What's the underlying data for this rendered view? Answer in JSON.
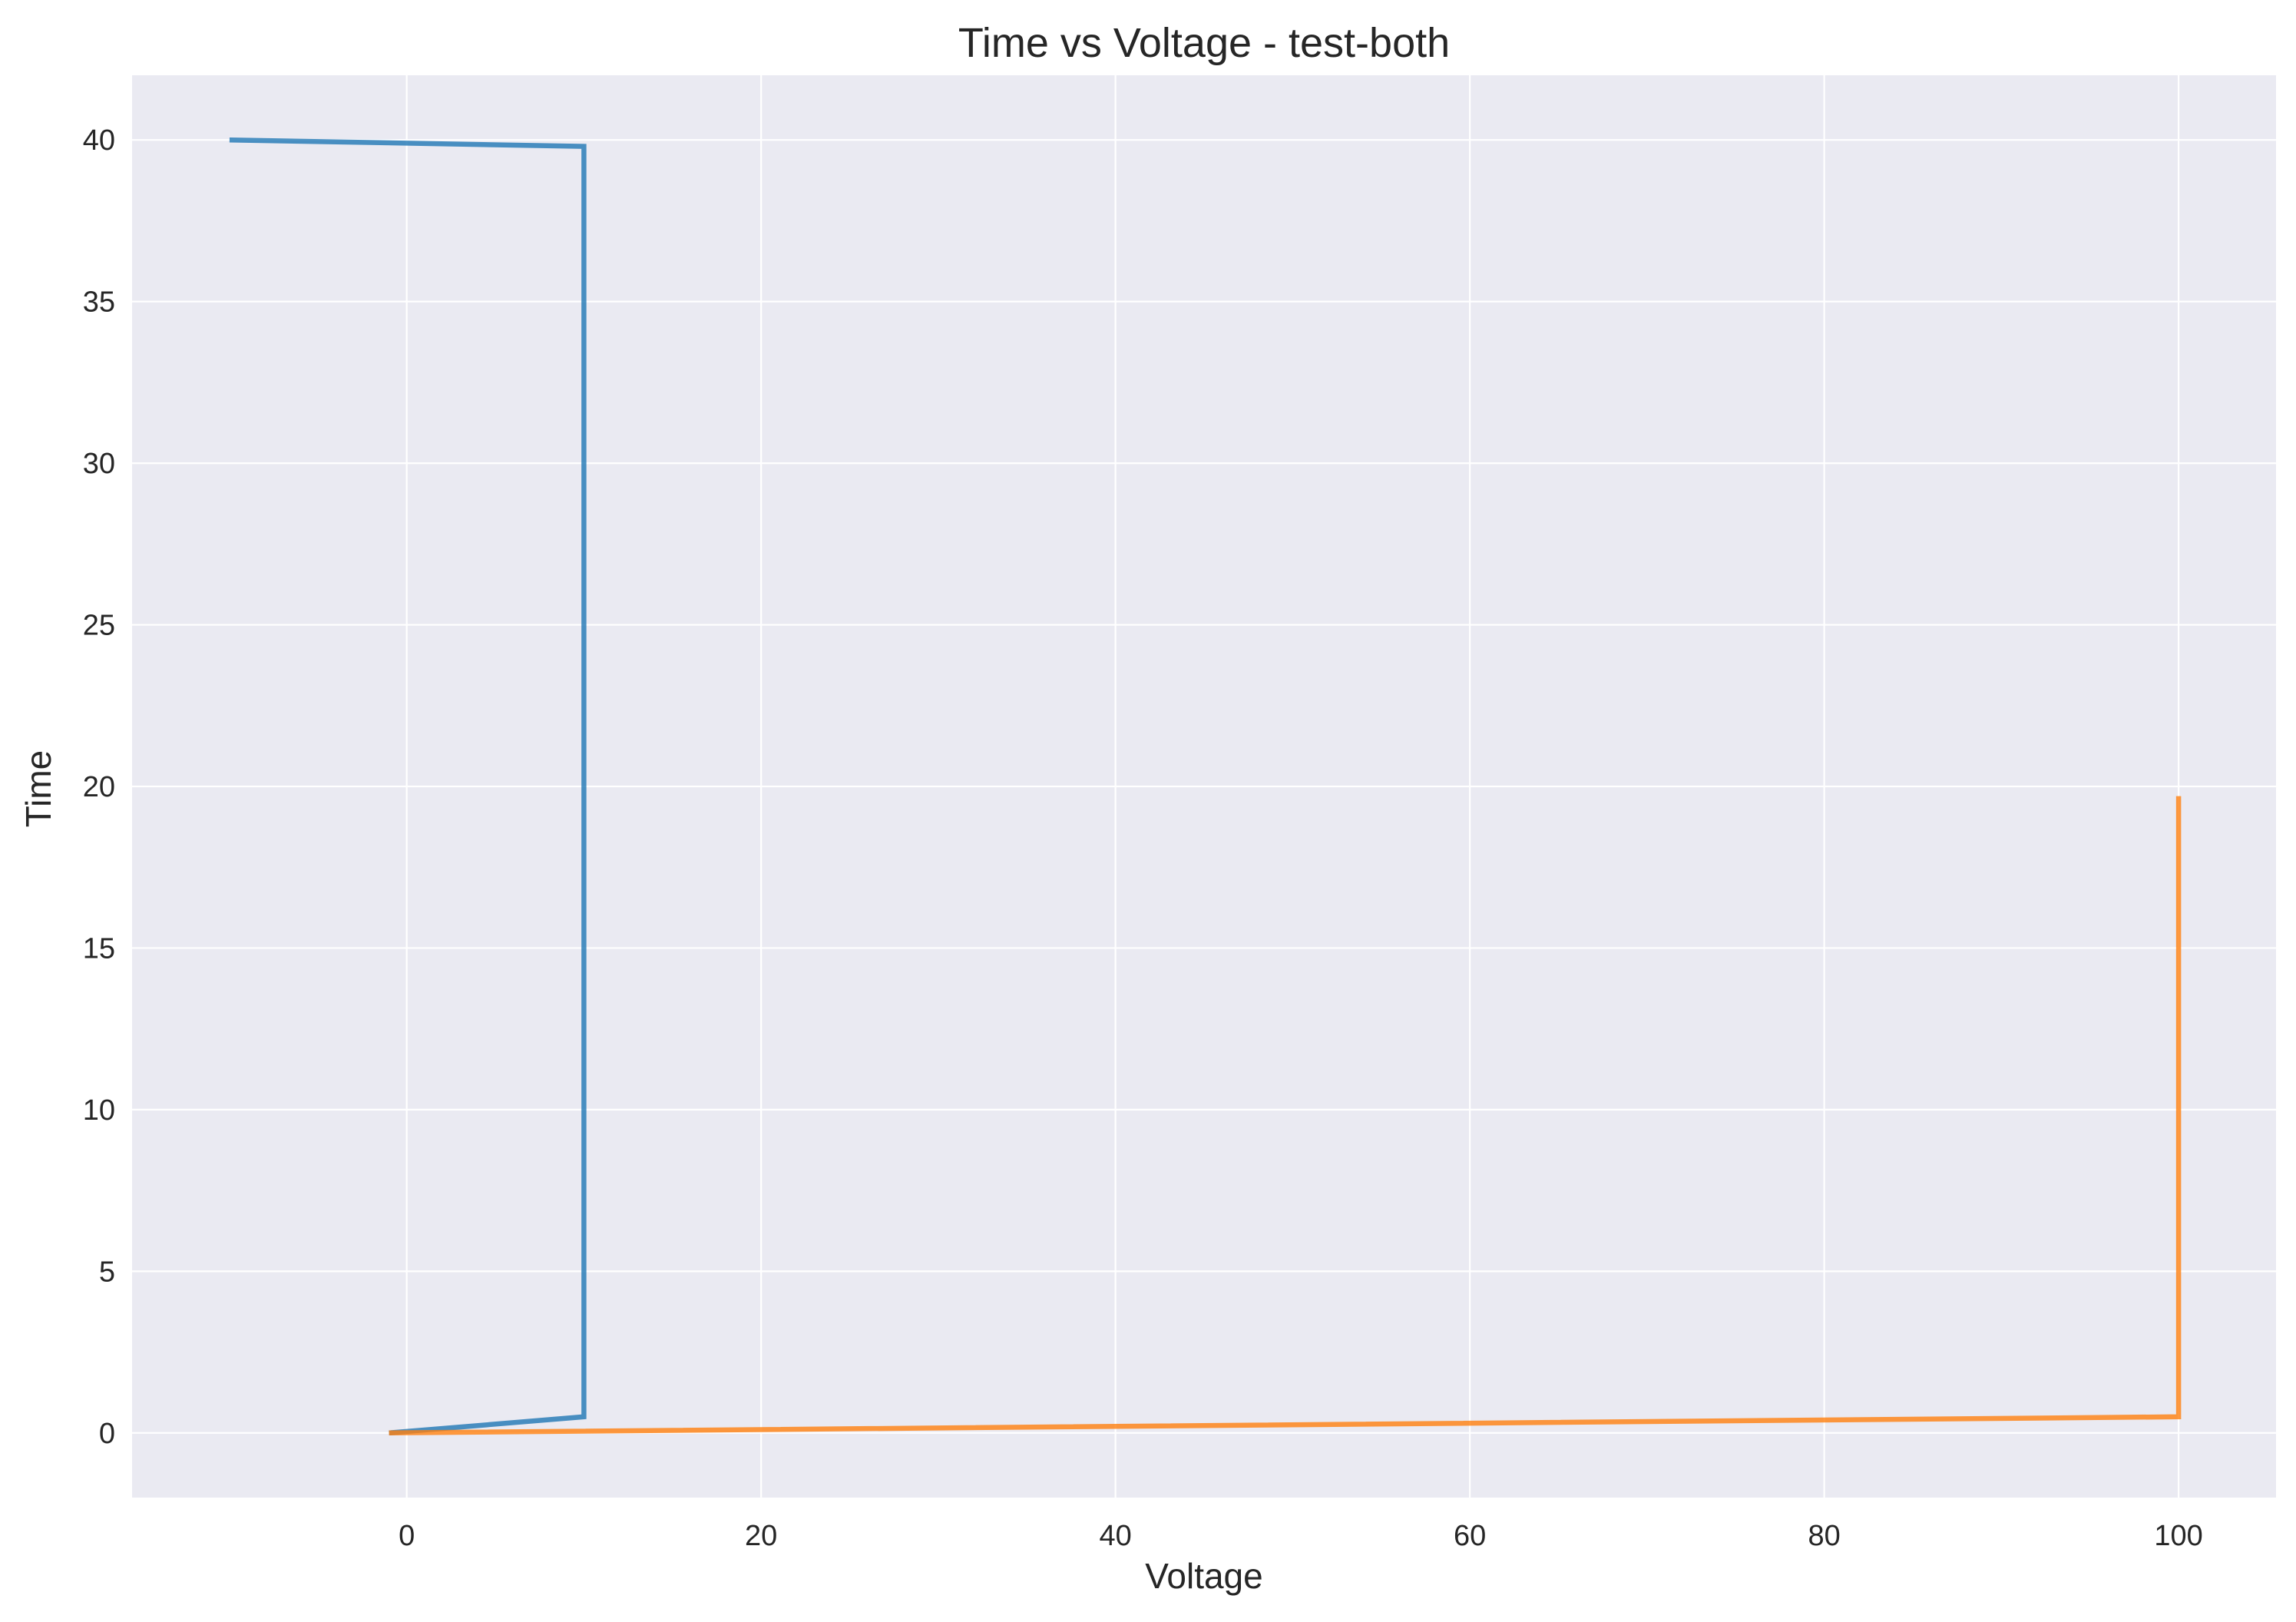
{
  "chart_data": {
    "type": "line",
    "title": "Time vs Voltage - test-both",
    "xlabel": "Voltage",
    "ylabel": "Time",
    "xlim": [
      -15.5,
      105.5
    ],
    "ylim": [
      -2,
      42
    ],
    "xticks": [
      0,
      20,
      40,
      60,
      80,
      100
    ],
    "yticks": [
      0,
      5,
      10,
      15,
      20,
      25,
      30,
      35,
      40
    ],
    "grid": true,
    "legend": "none",
    "background_color": "#eaeaf2",
    "series": [
      {
        "color": "#1f77b4",
        "points": [
          [
            -1,
            0
          ],
          [
            10,
            0.5
          ],
          [
            10,
            39.8
          ],
          [
            -10,
            40
          ]
        ]
      },
      {
        "color": "#ff7f0e",
        "points": [
          [
            -1,
            0
          ],
          [
            100,
            0.5
          ],
          [
            100,
            19.7
          ]
        ]
      }
    ]
  }
}
